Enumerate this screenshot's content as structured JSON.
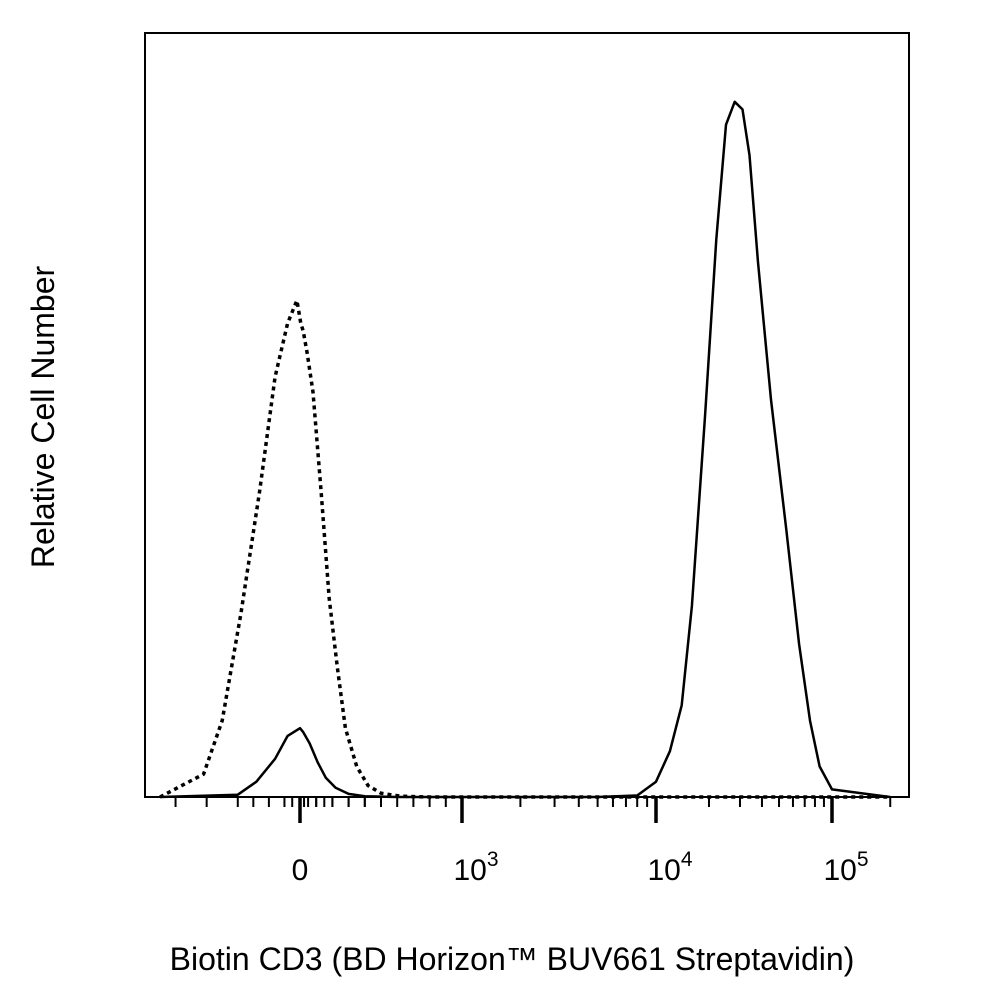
{
  "chart_data": {
    "type": "line",
    "xlabel": "Biotin CD3 (BD Horizon™ BUV661 Streptavidin)",
    "ylabel": "Relative Cell Number",
    "x_scale": "biexponential",
    "x_ticks": [
      {
        "value": 0,
        "base": "0",
        "exp": ""
      },
      {
        "value": 1000,
        "base": "10",
        "exp": "3"
      },
      {
        "value": 10000,
        "base": "10",
        "exp": "4"
      },
      {
        "value": 100000,
        "base": "10",
        "exp": "5"
      }
    ],
    "xlim": [
      -450,
      250000
    ],
    "ylim": [
      0,
      100
    ],
    "grid": false,
    "legend": "none",
    "series": [
      {
        "line_style": "dotted",
        "color": "#000000",
        "x": [
          -450,
          -310,
          -250,
          -190,
          -130,
          -80,
          -40,
          -10,
          5,
          20,
          45,
          80,
          130,
          180,
          230,
          280,
          350,
          420,
          500,
          620,
          800,
          1000,
          10000,
          100000,
          200000
        ],
        "y": [
          0,
          3,
          10,
          24,
          40,
          55,
          62,
          65,
          62,
          61,
          58,
          53,
          40,
          26,
          17,
          9,
          4,
          1.5,
          0.5,
          0.1,
          0,
          0,
          0,
          0,
          0
        ]
      },
      {
        "line_style": "solid",
        "color": "#000000",
        "x": [
          -450,
          -200,
          -140,
          -80,
          -40,
          0,
          20,
          60,
          110,
          160,
          220,
          300,
          400,
          600,
          1000,
          5000,
          8000,
          10000,
          12000,
          14000,
          16000,
          19000,
          22000,
          25000,
          28000,
          31000,
          34000,
          38000,
          45000,
          55000,
          65000,
          75000,
          85000,
          100000,
          200000
        ],
        "y": [
          0,
          0.3,
          2,
          5,
          8,
          9,
          8.5,
          7,
          4.5,
          2.5,
          1.2,
          0.4,
          0.1,
          0,
          0,
          0,
          0.2,
          2,
          6,
          12,
          25,
          50,
          73,
          88,
          91,
          90,
          84,
          70,
          52,
          35,
          20,
          10,
          4,
          1,
          0
        ]
      }
    ]
  }
}
